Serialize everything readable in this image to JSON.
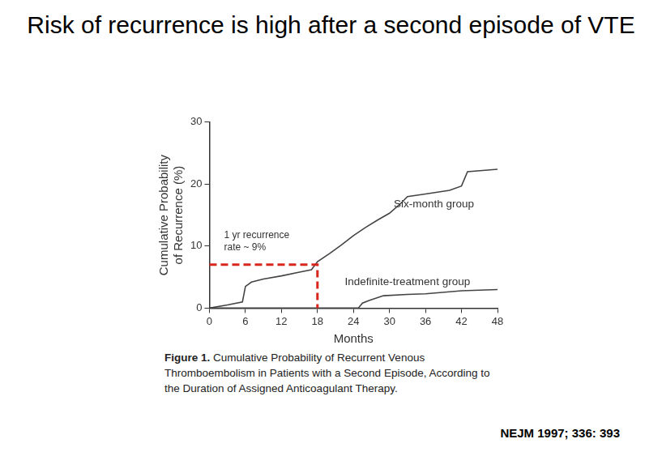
{
  "chart_data": {
    "type": "line",
    "title": "Risk of recurrence is high after a second episode of VTE",
    "x_label": "Months",
    "y_label": "Cumulative Probability of Recurrence (%)",
    "xlim": [
      0,
      48
    ],
    "xticks": [
      0,
      6,
      12,
      18,
      24,
      30,
      36,
      42,
      48
    ],
    "ylim": [
      0,
      30
    ],
    "yticks": [
      0,
      10,
      20,
      30
    ],
    "grid": false,
    "series": [
      {
        "name": "Six-month group",
        "color": "#444444",
        "x": [
          0,
          3,
          5.5,
          6,
          7,
          9,
          12,
          15,
          17,
          18,
          20,
          22,
          24,
          26,
          28,
          30,
          32,
          33,
          36,
          40,
          42,
          43,
          48
        ],
        "values": [
          0,
          0.5,
          1,
          3.5,
          4.2,
          4.7,
          5.2,
          5.8,
          6.2,
          7.5,
          8.8,
          10.2,
          11.7,
          13,
          14.2,
          15.3,
          17,
          18,
          18.4,
          19,
          19.7,
          22,
          22.4
        ]
      },
      {
        "name": "Indefinite-treatment group",
        "color": "#444444",
        "x": [
          0,
          24.8,
          25.5,
          26.5,
          29,
          33,
          36,
          42,
          48
        ],
        "values": [
          0,
          0,
          0.8,
          1.2,
          2,
          2.2,
          2.3,
          2.8,
          3
        ]
      }
    ],
    "annotations": [
      {
        "text": "1 yr recurrence rate ~ 9%",
        "x": 18,
        "y": 7,
        "color": "#d9261c",
        "line_style": "dashed"
      }
    ],
    "caption_label": "Figure 1.",
    "caption": "Cumulative Probability of Recurrent Venous Thromboembolism in Patients with a Second Episode, According to the Duration of Assigned Anticoagulant Therapy.",
    "source": "NEJM 1997; 336: 393"
  }
}
